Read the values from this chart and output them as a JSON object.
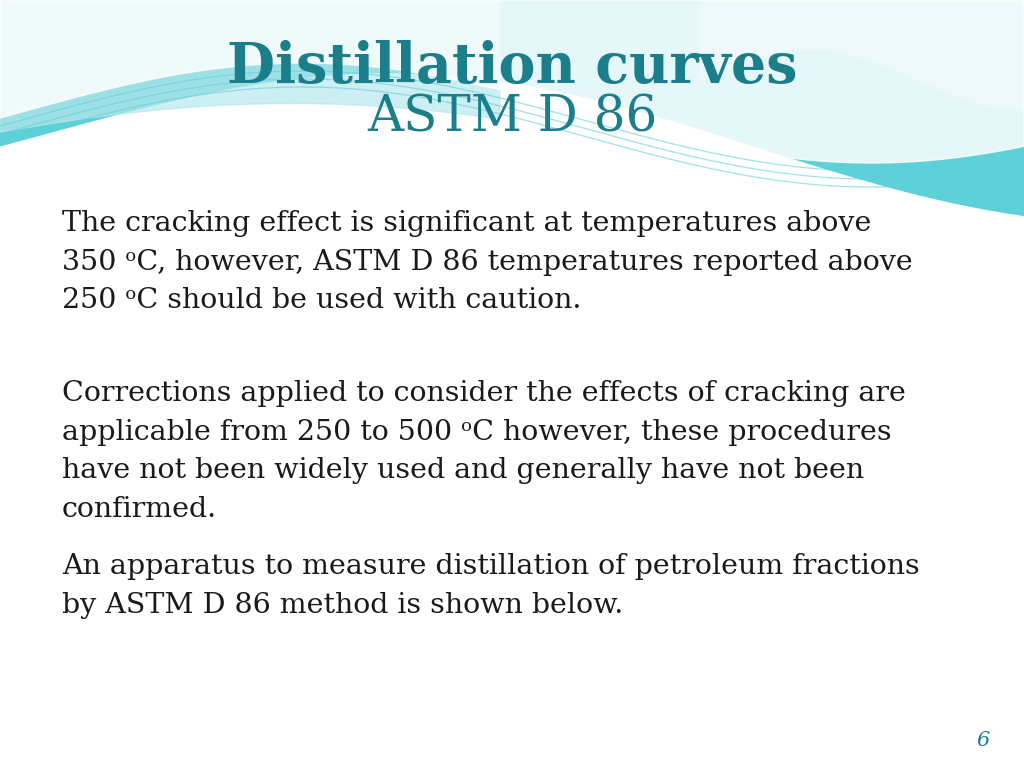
{
  "title_line1": "Distillation curves",
  "title_line2": "ASTM D 86",
  "title_color": "#1a7f8a",
  "title1_fontsize": 40,
  "title2_fontsize": 36,
  "body_paragraphs": [
    "The cracking effect is significant at temperatures above\n350 ᵒC, however, ASTM D 86 temperatures reported above\n250 ᵒC should be used with caution.",
    "Corrections applied to consider the effects of cracking are\napplicable from 250 to 500 ᵒC however, these procedures\nhave not been widely used and generally have not been\nconfirmed.",
    "An apparatus to measure distillation of petroleum fractions\nby ASTM D 86 method is shown below."
  ],
  "body_color": "#1a1a1a",
  "body_fontsize": 20.5,
  "page_number": "6",
  "page_number_color": "#1a7f8a",
  "bg_color": "#ffffff",
  "wave_color_main": "#5dd0d8",
  "wave_color_light": "#b8e8ed",
  "wave_color_pale": "#daf4f6"
}
